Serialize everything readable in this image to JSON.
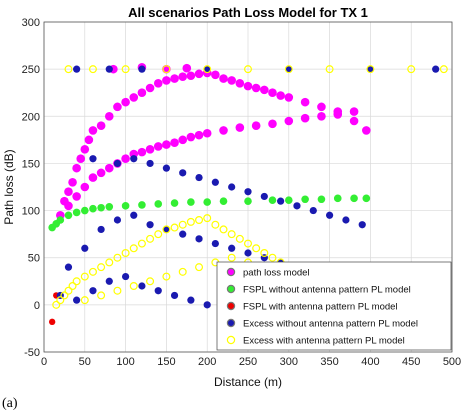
{
  "chart_data": {
    "type": "scatter",
    "title": "All scenarios Path Loss Model for TX 1",
    "xlabel": "Distance (m)",
    "ylabel": "Path loss (dB)",
    "xlim": [
      0,
      500
    ],
    "ylim": [
      -50,
      300
    ],
    "xticks": [
      "0",
      "50",
      "100",
      "150",
      "200",
      "250",
      "300",
      "350",
      "400",
      "450",
      "500"
    ],
    "yticks": [
      "-50",
      "0",
      "50",
      "100",
      "150",
      "200",
      "250",
      "300"
    ],
    "grid": true,
    "legend_position": "bottom-right",
    "series": [
      {
        "name": "path loss model",
        "color": "#ff00ff",
        "points": [
          [
            20,
            95
          ],
          [
            25,
            110
          ],
          [
            30,
            120
          ],
          [
            35,
            130
          ],
          [
            40,
            145
          ],
          [
            45,
            155
          ],
          [
            50,
            165
          ],
          [
            55,
            175
          ],
          [
            60,
            185
          ],
          [
            70,
            190
          ],
          [
            80,
            200
          ],
          [
            90,
            210
          ],
          [
            100,
            215
          ],
          [
            110,
            220
          ],
          [
            120,
            225
          ],
          [
            130,
            230
          ],
          [
            140,
            235
          ],
          [
            150,
            238
          ],
          [
            160,
            240
          ],
          [
            170,
            242
          ],
          [
            180,
            243
          ],
          [
            190,
            245
          ],
          [
            200,
            246
          ],
          [
            210,
            244
          ],
          [
            220,
            240
          ],
          [
            230,
            238
          ],
          [
            240,
            235
          ],
          [
            250,
            232
          ],
          [
            260,
            230
          ],
          [
            270,
            228
          ],
          [
            280,
            225
          ],
          [
            290,
            222
          ],
          [
            300,
            220
          ],
          [
            320,
            215
          ],
          [
            340,
            210
          ],
          [
            360,
            205
          ],
          [
            380,
            195
          ],
          [
            395,
            185
          ],
          [
            30,
            105
          ],
          [
            40,
            115
          ],
          [
            50,
            125
          ],
          [
            60,
            135
          ],
          [
            70,
            140
          ],
          [
            80,
            145
          ],
          [
            90,
            150
          ],
          [
            100,
            155
          ],
          [
            110,
            160
          ],
          [
            120,
            162
          ],
          [
            130,
            165
          ],
          [
            140,
            168
          ],
          [
            150,
            170
          ],
          [
            160,
            172
          ],
          [
            170,
            175
          ],
          [
            180,
            178
          ],
          [
            190,
            180
          ],
          [
            200,
            182
          ],
          [
            220,
            185
          ],
          [
            240,
            188
          ],
          [
            260,
            190
          ],
          [
            280,
            192
          ],
          [
            300,
            195
          ],
          [
            320,
            198
          ],
          [
            340,
            200
          ],
          [
            360,
            202
          ],
          [
            380,
            205
          ],
          [
            85,
            250
          ],
          [
            120,
            252
          ],
          [
            150,
            250
          ],
          [
            175,
            251
          ]
        ]
      },
      {
        "name": "FSPL without antenna pattern PL model",
        "color": "#33ee33",
        "points": [
          [
            10,
            82
          ],
          [
            15,
            86
          ],
          [
            20,
            90
          ],
          [
            30,
            95
          ],
          [
            40,
            98
          ],
          [
            50,
            100
          ],
          [
            60,
            102
          ],
          [
            70,
            103
          ],
          [
            80,
            104
          ],
          [
            100,
            105
          ],
          [
            120,
            106
          ],
          [
            140,
            107
          ],
          [
            160,
            108
          ],
          [
            180,
            109
          ],
          [
            200,
            109
          ],
          [
            220,
            110
          ],
          [
            250,
            110
          ],
          [
            280,
            111
          ],
          [
            300,
            111
          ],
          [
            320,
            112
          ],
          [
            340,
            112
          ],
          [
            360,
            113
          ],
          [
            380,
            113
          ],
          [
            395,
            113
          ]
        ]
      },
      {
        "name": "FSPL with antenna pattern PL model",
        "color": "#ee0000",
        "points": [
          [
            10,
            -18
          ],
          [
            15,
            10
          ]
        ]
      },
      {
        "name": "Excess without antenna pattern PL model",
        "color": "#1a1ab0",
        "points": [
          [
            40,
            250
          ],
          [
            80,
            250
          ],
          [
            120,
            250
          ],
          [
            200,
            250
          ],
          [
            300,
            250
          ],
          [
            400,
            250
          ],
          [
            480,
            250
          ],
          [
            60,
            155
          ],
          [
            90,
            150
          ],
          [
            110,
            155
          ],
          [
            130,
            150
          ],
          [
            150,
            145
          ],
          [
            170,
            140
          ],
          [
            190,
            135
          ],
          [
            210,
            130
          ],
          [
            230,
            125
          ],
          [
            250,
            120
          ],
          [
            270,
            115
          ],
          [
            290,
            110
          ],
          [
            310,
            105
          ],
          [
            330,
            100
          ],
          [
            350,
            95
          ],
          [
            370,
            90
          ],
          [
            390,
            85
          ],
          [
            30,
            40
          ],
          [
            50,
            60
          ],
          [
            70,
            80
          ],
          [
            90,
            90
          ],
          [
            110,
            95
          ],
          [
            130,
            85
          ],
          [
            150,
            80
          ],
          [
            170,
            75
          ],
          [
            190,
            70
          ],
          [
            210,
            65
          ],
          [
            230,
            60
          ],
          [
            250,
            55
          ],
          [
            270,
            50
          ],
          [
            290,
            45
          ],
          [
            310,
            40
          ],
          [
            330,
            35
          ],
          [
            350,
            30
          ],
          [
            370,
            25
          ],
          [
            390,
            20
          ],
          [
            20,
            10
          ],
          [
            40,
            5
          ],
          [
            60,
            15
          ],
          [
            80,
            25
          ],
          [
            100,
            30
          ],
          [
            120,
            20
          ],
          [
            140,
            15
          ],
          [
            160,
            10
          ],
          [
            180,
            5
          ],
          [
            200,
            0
          ]
        ]
      },
      {
        "name": "Excess with antenna pattern PL model",
        "color": "#ffff00",
        "points": [
          [
            30,
            250
          ],
          [
            60,
            250
          ],
          [
            100,
            250
          ],
          [
            150,
            250
          ],
          [
            200,
            250
          ],
          [
            250,
            250
          ],
          [
            300,
            250
          ],
          [
            350,
            250
          ],
          [
            400,
            250
          ],
          [
            450,
            250
          ],
          [
            490,
            250
          ],
          [
            15,
            0
          ],
          [
            20,
            5
          ],
          [
            25,
            10
          ],
          [
            30,
            15
          ],
          [
            35,
            20
          ],
          [
            40,
            25
          ],
          [
            50,
            30
          ],
          [
            60,
            35
          ],
          [
            70,
            40
          ],
          [
            80,
            45
          ],
          [
            90,
            50
          ],
          [
            100,
            55
          ],
          [
            110,
            60
          ],
          [
            120,
            65
          ],
          [
            130,
            70
          ],
          [
            140,
            75
          ],
          [
            150,
            80
          ],
          [
            160,
            82
          ],
          [
            170,
            85
          ],
          [
            180,
            88
          ],
          [
            190,
            90
          ],
          [
            200,
            92
          ],
          [
            210,
            85
          ],
          [
            220,
            80
          ],
          [
            230,
            75
          ],
          [
            240,
            70
          ],
          [
            250,
            65
          ],
          [
            260,
            60
          ],
          [
            270,
            55
          ],
          [
            280,
            50
          ],
          [
            290,
            45
          ],
          [
            300,
            40
          ],
          [
            310,
            35
          ],
          [
            320,
            30
          ],
          [
            330,
            25
          ],
          [
            340,
            20
          ],
          [
            350,
            15
          ],
          [
            360,
            10
          ],
          [
            370,
            5
          ],
          [
            380,
            0
          ],
          [
            50,
            5
          ],
          [
            70,
            10
          ],
          [
            90,
            15
          ],
          [
            110,
            20
          ],
          [
            130,
            25
          ],
          [
            150,
            30
          ],
          [
            170,
            35
          ],
          [
            190,
            40
          ],
          [
            210,
            45
          ],
          [
            230,
            50
          ],
          [
            250,
            45
          ]
        ]
      }
    ]
  },
  "caption": "(a)"
}
